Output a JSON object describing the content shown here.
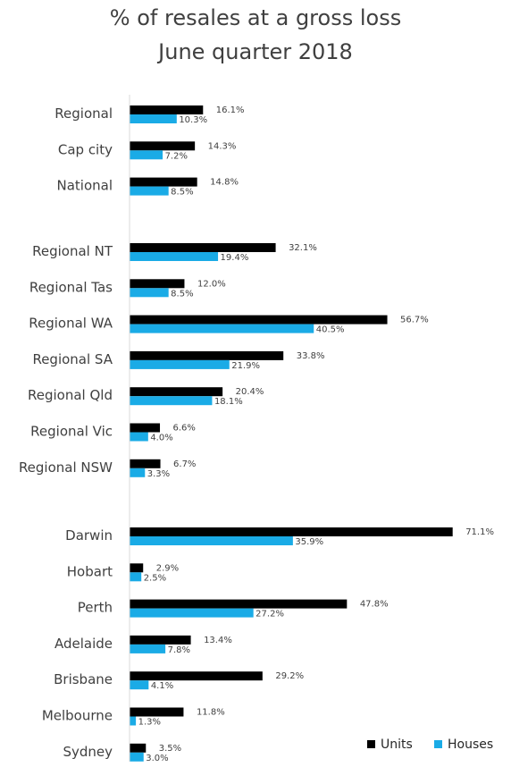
{
  "chart_data": {
    "type": "bar",
    "orientation": "horizontal",
    "title": "% of resales at a gross loss",
    "subtitle": "June quarter 2018",
    "legend_position": "bottom-right",
    "grid": false,
    "xlim": [
      0,
      80
    ],
    "categories": [
      "Regional",
      "Cap city",
      "National",
      "Regional NT",
      "Regional Tas",
      "Regional WA",
      "Regional SA",
      "Regional Qld",
      "Regional Vic",
      "Regional NSW",
      "Darwin",
      "Hobart",
      "Perth",
      "Adelaide",
      "Brisbane",
      "Melbourne",
      "Sydney"
    ],
    "groups": [
      [
        "Regional",
        "Cap city",
        "National"
      ],
      [
        "Regional NT",
        "Regional Tas",
        "Regional WA",
        "Regional SA",
        "Regional Qld",
        "Regional Vic",
        "Regional NSW"
      ],
      [
        "Darwin",
        "Hobart",
        "Perth",
        "Adelaide",
        "Brisbane",
        "Melbourne",
        "Sydney"
      ]
    ],
    "series": [
      {
        "name": "Units",
        "color": "#000000",
        "values": [
          16.1,
          14.3,
          14.8,
          32.1,
          12.0,
          56.7,
          33.8,
          20.4,
          6.6,
          6.7,
          71.1,
          2.9,
          47.8,
          13.4,
          29.2,
          11.8,
          3.5
        ],
        "labels": [
          "16.1%",
          "14.3%",
          "14.8%",
          "32.1%",
          "12.0%",
          "56.7%",
          "33.8%",
          "20.4%",
          "6.6%",
          "6.7%",
          "71.1%",
          "2.9%",
          "47.8%",
          "13.4%",
          "29.2%",
          "11.8%",
          "3.5%"
        ]
      },
      {
        "name": "Houses",
        "color": "#1aabe6",
        "values": [
          10.3,
          7.2,
          8.5,
          19.4,
          8.5,
          40.5,
          21.9,
          18.1,
          4.0,
          3.3,
          35.9,
          2.5,
          27.2,
          7.8,
          4.1,
          1.3,
          3.0
        ],
        "labels": [
          "10.3%",
          "7.2%",
          "8.5%",
          "19.4%",
          "8.5%",
          "40.5%",
          "21.9%",
          "18.1%",
          "4.0%",
          "3.3%",
          "35.9%",
          "2.5%",
          "27.2%",
          "7.8%",
          "4.1%",
          "1.3%",
          "3.0%"
        ]
      }
    ]
  }
}
